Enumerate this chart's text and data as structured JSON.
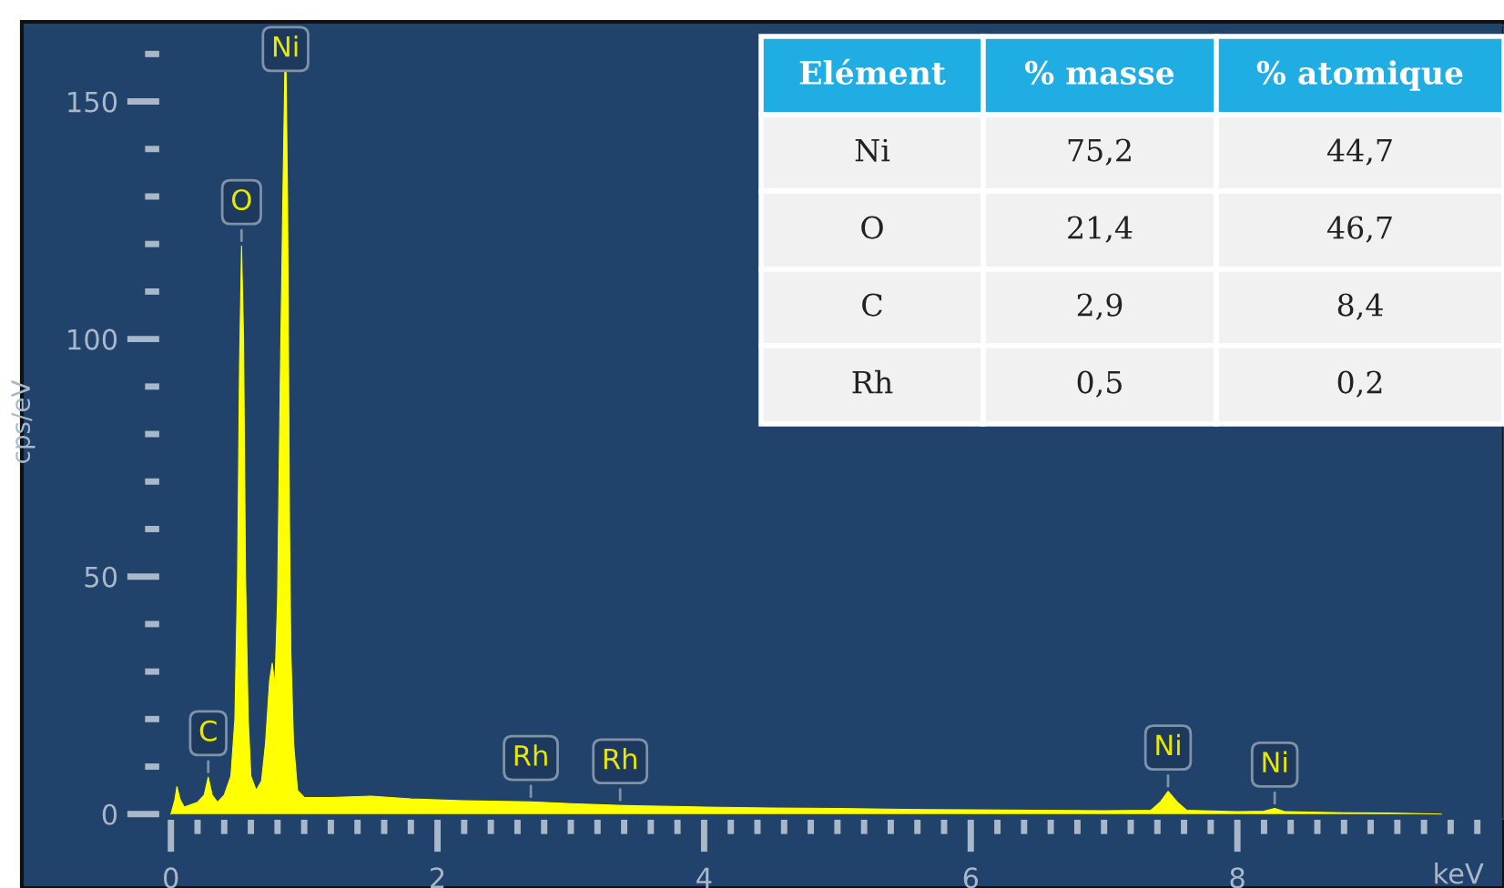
{
  "chart_data": {
    "type": "area",
    "xlabel": "keV",
    "ylabel": "cps/eV",
    "x": [
      0,
      0.03,
      0.045,
      0.07,
      0.1,
      0.2,
      0.25,
      0.28,
      0.31,
      0.35,
      0.4,
      0.45,
      0.48,
      0.5,
      0.515,
      0.53,
      0.545,
      0.56,
      0.58,
      0.6,
      0.64,
      0.68,
      0.71,
      0.74,
      0.76,
      0.78,
      0.8,
      0.82,
      0.84,
      0.86,
      0.875,
      0.89,
      0.9,
      0.92,
      0.95,
      1.0,
      1.2,
      1.5,
      1.8,
      2.2,
      2.7,
      3.0,
      3.4,
      4.0,
      4.5,
      5.0,
      5.5,
      6.0,
      6.5,
      7.0,
      7.35,
      7.42,
      7.48,
      7.55,
      7.62,
      8.0,
      8.2,
      8.28,
      8.36,
      8.8,
      9.2,
      9.53
    ],
    "values": [
      0,
      3,
      5.8,
      3,
      1.5,
      2.5,
      4,
      7.8,
      4,
      2.5,
      4,
      8,
      20,
      50,
      95,
      119.6,
      100,
      50,
      20,
      8,
      5,
      7,
      15,
      28,
      31.8,
      27,
      45,
      90,
      130,
      166,
      130,
      60,
      34,
      15,
      5,
      3.5,
      3.5,
      3.8,
      3.2,
      2.8,
      2.6,
      2.2,
      1.8,
      1.5,
      1.3,
      1.2,
      1,
      0.9,
      0.8,
      0.7,
      0.8,
      2.5,
      4.8,
      2.5,
      0.8,
      0.5,
      0.6,
      1.2,
      0.5,
      0.3,
      0.2,
      0
    ],
    "color": "#ffff00",
    "xlim": [
      -0.08,
      10
    ],
    "ylim": [
      -1,
      166
    ],
    "xticks": [
      0,
      {
        "value": 0.2,
        "label": null
      },
      {
        "value": 0.4,
        "label": null
      },
      {
        "value": 0.6,
        "label": null
      },
      {
        "value": 0.8,
        "label": null
      },
      {
        "value": 1,
        "label": null
      },
      {
        "value": 1.2,
        "label": null
      },
      {
        "value": 1.4,
        "label": null
      },
      {
        "value": 1.6,
        "label": null
      },
      {
        "value": 1.8,
        "label": null
      },
      2,
      {
        "value": 2.2,
        "label": null
      },
      {
        "value": 2.4,
        "label": null
      },
      {
        "value": 2.6,
        "label": null
      },
      {
        "value": 2.8,
        "label": null
      },
      {
        "value": 3,
        "label": null
      },
      {
        "value": 3.2,
        "label": null
      },
      {
        "value": 3.4,
        "label": null
      },
      {
        "value": 3.6,
        "label": null
      },
      {
        "value": 3.8,
        "label": null
      },
      4,
      {
        "value": 4.2,
        "label": null
      },
      {
        "value": 4.4,
        "label": null
      },
      {
        "value": 4.6,
        "label": null
      },
      {
        "value": 4.8,
        "label": null
      },
      {
        "value": 5,
        "label": null
      },
      {
        "value": 5.2,
        "label": null
      },
      {
        "value": 5.4,
        "label": null
      },
      {
        "value": 5.6,
        "label": null
      },
      {
        "value": 5.8,
        "label": null
      },
      6,
      {
        "value": 6.2,
        "label": null
      },
      {
        "value": 6.4,
        "label": null
      },
      {
        "value": 6.6,
        "label": null
      },
      {
        "value": 6.8,
        "label": null
      },
      {
        "value": 7,
        "label": null
      },
      {
        "value": 7.2,
        "label": null
      },
      {
        "value": 7.4,
        "label": null
      },
      {
        "value": 7.6,
        "label": null
      },
      {
        "value": 7.8,
        "label": null
      },
      8,
      {
        "value": 8.2,
        "label": null
      },
      {
        "value": 8.4,
        "label": null
      },
      {
        "value": 8.6,
        "label": null
      },
      {
        "value": 8.8,
        "label": null
      },
      {
        "value": 9,
        "label": null
      },
      {
        "value": 9.2,
        "label": null
      },
      {
        "value": 9.4,
        "label": null
      },
      {
        "value": 9.6,
        "label": null
      },
      {
        "value": 9.8,
        "label": null
      }
    ],
    "yticks": [
      0,
      {
        "value": 10,
        "label": null
      },
      {
        "value": 20,
        "label": null
      },
      {
        "value": 30,
        "label": null
      },
      {
        "value": 40,
        "label": null
      },
      50,
      {
        "value": 60,
        "label": null
      },
      {
        "value": 70,
        "label": null
      },
      {
        "value": 80,
        "label": null
      },
      {
        "value": 90,
        "label": null
      },
      100,
      {
        "value": 110,
        "label": null
      },
      {
        "value": 120,
        "label": null
      },
      {
        "value": 130,
        "label": null
      },
      {
        "value": 140,
        "label": null
      },
      150,
      {
        "value": 160,
        "label": null
      }
    ],
    "grid": false,
    "annotations": [
      {
        "text": "C",
        "x": 0.28,
        "y": 7.8
      },
      {
        "text": "O",
        "x": 0.53,
        "y": 119.6
      },
      {
        "text": "Ni",
        "x": 0.86,
        "y": 166
      },
      {
        "text": "Rh",
        "x": 2.7,
        "y": 2.6
      },
      {
        "text": "Rh",
        "x": 3.37,
        "y": 1.9
      },
      {
        "text": "Ni",
        "x": 7.48,
        "y": 4.8
      },
      {
        "text": "Ni",
        "x": 8.28,
        "y": 1.2
      },
      "Elément",
      "% masse",
      "% atomique",
      "Ni",
      "75,2",
      "44,7",
      "O",
      "21,4",
      "46,7",
      "C",
      "2,9",
      "8,4",
      "Rh",
      "0,5",
      "0,2"
    ]
  }
}
